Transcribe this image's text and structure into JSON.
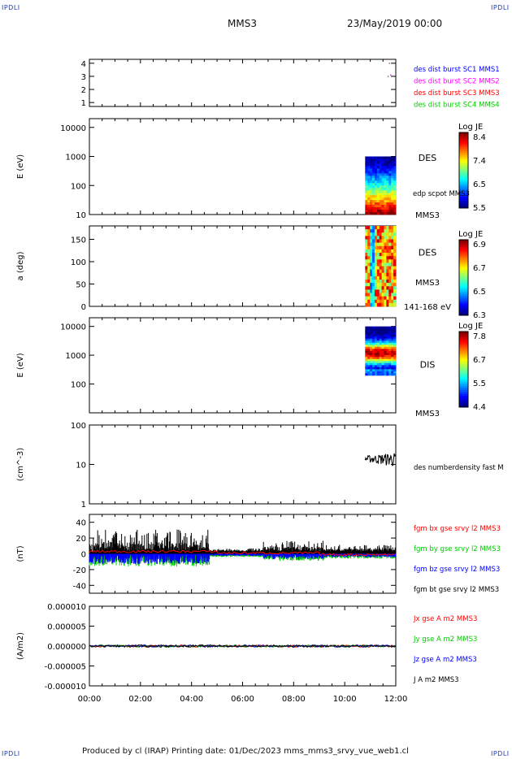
{
  "corner_tl": "IPDLI",
  "corner_tr": "IPDLI",
  "corner_bl": "IPDLI",
  "corner_br": "IPDLI",
  "header": {
    "spacecraft": "MMS3",
    "date": "23/May/2019 00:00"
  },
  "footer": {
    "text": "Produced by cl (IRAP)   Printing date: 01/Dec/2023   mms_mms3_srvy_vue_web1.cl"
  },
  "chart_data": {
    "type": "line",
    "x_axis": {
      "label": "",
      "ticks": [
        "00:00",
        "02:00",
        "04:00",
        "06:00",
        "08:00",
        "10:00",
        "12:00"
      ],
      "range_hours": [
        0,
        12
      ]
    },
    "panels": [
      {
        "id": "burst",
        "type": "scatter",
        "yticks": [
          "1",
          "2",
          "3",
          "4"
        ],
        "ylim": [
          0.7,
          4.3
        ],
        "series": [
          {
            "name": "des dist burst SC1 MMS1",
            "color": "#0000ff"
          },
          {
            "name": "des dist burst SC2 MMS2",
            "color": "#ff00ff"
          },
          {
            "name": "des dist burst SC3 MMS3",
            "color": "#ff0000"
          },
          {
            "name": "des dist burst SC4 MMS4",
            "color": "#00cc00"
          }
        ],
        "points": [
          {
            "x": 11.7,
            "y": 3.0
          },
          {
            "x": 11.8,
            "y": 3.1
          },
          {
            "x": 11.75,
            "y": 4.0
          }
        ]
      },
      {
        "id": "des_energy",
        "type": "heatmap",
        "ylabel": "E (eV)",
        "yscale": "log",
        "ylim": [
          10,
          20000
        ],
        "yticks": [
          "10",
          "100",
          "1000",
          "10000"
        ],
        "instrument": "DES",
        "sc": "MMS3",
        "annotation": "edp scpot MMS3",
        "colorbar": {
          "title": "Log JE",
          "ticks": [
            "8.4",
            "7.4",
            "6.5",
            "5.5"
          ]
        },
        "data_span_hours": [
          10.8,
          12.0
        ]
      },
      {
        "id": "des_pitch",
        "type": "heatmap",
        "ylabel": "a (deg)",
        "ylim": [
          0,
          180
        ],
        "yticks": [
          "0",
          "50",
          "100",
          "150"
        ],
        "instrument": "DES",
        "sc": "MMS3",
        "energy_band": "141-168 eV",
        "colorbar": {
          "title": "Log JE",
          "ticks": [
            "6.9",
            "6.7",
            "6.5",
            "6.3"
          ]
        },
        "data_span_hours": [
          10.8,
          12.0
        ]
      },
      {
        "id": "dis_energy",
        "type": "heatmap",
        "ylabel": "E (eV)",
        "yscale": "log",
        "ylim": [
          10,
          20000
        ],
        "yticks": [
          "100",
          "1000",
          "10000"
        ],
        "instrument": "DIS",
        "sc": "MMS3",
        "colorbar": {
          "title": "Log JE",
          "ticks": [
            "7.8",
            "6.7",
            "5.5",
            "4.4"
          ]
        },
        "data_span_hours": [
          10.8,
          12.0
        ]
      },
      {
        "id": "density",
        "type": "line",
        "ylabel": "(cm^-3)",
        "yscale": "log",
        "ylim": [
          1,
          100
        ],
        "yticks": [
          "1",
          "10",
          "100"
        ],
        "series": [
          {
            "name": "des numberdensity fast M",
            "color": "#000000",
            "x_span": [
              10.8,
              12.0
            ],
            "value": 14
          }
        ]
      },
      {
        "id": "fgm",
        "type": "line",
        "ylabel": "(nT)",
        "ylim": [
          -50,
          50
        ],
        "yticks": [
          "-40",
          "-20",
          "0",
          "20",
          "40"
        ],
        "series": [
          {
            "name": "fgm bx gse srvy l2 MMS3",
            "color": "#ff0000"
          },
          {
            "name": "fgm by gse srvy l2 MMS3",
            "color": "#00cc00"
          },
          {
            "name": "fgm bz gse srvy l2 MMS3",
            "color": "#0000ff"
          },
          {
            "name": "fgm bt gse srvy l2 MMS3",
            "color": "#000000"
          }
        ]
      },
      {
        "id": "current",
        "type": "line",
        "ylabel": "(A/m2)",
        "ylim": [
          -1e-05,
          1e-05
        ],
        "yticks": [
          "-0.000010",
          "-0.000005",
          "0.000000",
          "0.000005",
          "0.000010"
        ],
        "series": [
          {
            "name": "Jx gse A m2 MMS3",
            "color": "#ff0000"
          },
          {
            "name": "Jy gse A m2 MMS3",
            "color": "#00cc00"
          },
          {
            "name": "Jz gse A m2 MMS3",
            "color": "#0000ff"
          },
          {
            "name": "J A m2 MMS3",
            "color": "#000000"
          }
        ]
      }
    ]
  }
}
